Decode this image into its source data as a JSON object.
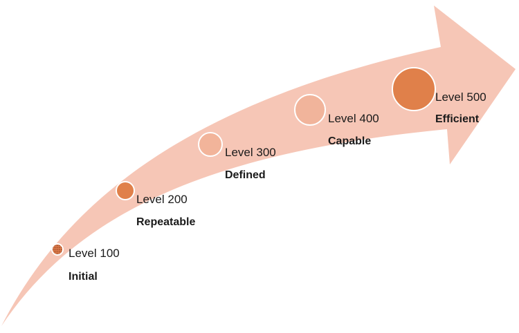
{
  "colors": {
    "arrow": "#f6c6b6",
    "circle_border": "#ffffff",
    "text": "#1a1a1a"
  },
  "levels": [
    {
      "label": "Level 100",
      "name": "Initial",
      "fill": "#d9794a",
      "texture": "dotted"
    },
    {
      "label": "Level 200",
      "name": "Repeatable",
      "fill": "#e0804a"
    },
    {
      "label": "Level 300",
      "name": "Defined",
      "fill": "#f2b49a"
    },
    {
      "label": "Level 400",
      "name": "Capable",
      "fill": "#f1b49b"
    },
    {
      "label": "Level 500",
      "name": "Efficient",
      "fill": "#e0804a"
    }
  ]
}
